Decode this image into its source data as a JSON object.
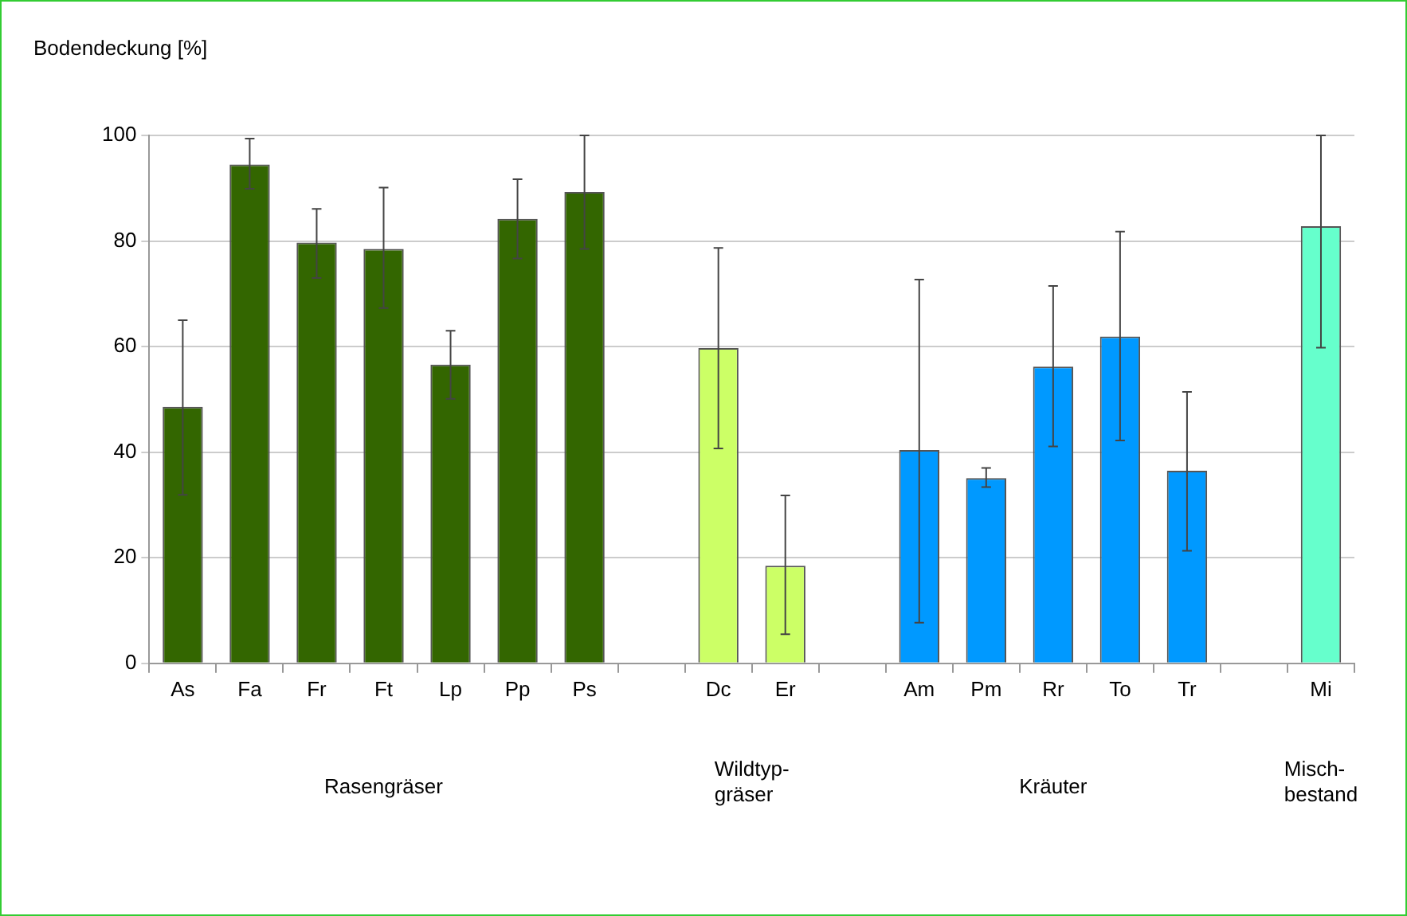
{
  "chart_data": {
    "type": "bar",
    "ylabel": "Bodendeckung [%]",
    "categories": [
      "As",
      "Fa",
      "Fr",
      "Ft",
      "Lp",
      "Pp",
      "Ps",
      null,
      "Dc",
      "Er",
      null,
      "Am",
      "Pm",
      "Rr",
      "To",
      "Tr",
      null,
      "Mi"
    ],
    "values": [
      48.6,
      94.5,
      79.7,
      78.5,
      56.6,
      84.2,
      89.3,
      null,
      59.7,
      18.5,
      null,
      40.4,
      35.1,
      56.2,
      61.9,
      36.5,
      null,
      82.8
    ],
    "colors": [
      "#336600",
      "#336600",
      "#336600",
      "#336600",
      "#336600",
      "#336600",
      "#336600",
      "#ffffff",
      "#ccff66",
      "#ccff66",
      "#ffffff",
      "#0099ff",
      "#0099ff",
      "#0099ff",
      "#0099ff",
      "#0099ff",
      "#ffffff",
      "#66ffcc"
    ],
    "errors": [
      [
        31.9,
        65
      ],
      [
        89.9,
        99.4
      ],
      [
        73,
        86.1
      ],
      [
        67.3,
        90.1
      ],
      [
        50.1,
        63
      ],
      [
        76.7,
        91.7
      ],
      [
        78.5,
        100
      ],
      null,
      [
        40.7,
        78.7
      ],
      [
        5.5,
        31.8
      ],
      null,
      [
        7.7,
        72.7
      ],
      [
        33.4,
        37
      ],
      [
        41.1,
        71.5
      ],
      [
        42.2,
        81.8
      ],
      [
        21.3,
        51.4
      ],
      null,
      [
        59.8,
        100
      ]
    ],
    "ylim": [
      0,
      100
    ],
    "yticks": [
      0,
      20,
      40,
      60,
      80,
      100
    ],
    "grid": "y",
    "legend": false,
    "annotations": [
      "Rasengräser",
      "Wildtyp-\ngräser",
      "Kräuter",
      "Misch-\nbestand"
    ]
  }
}
